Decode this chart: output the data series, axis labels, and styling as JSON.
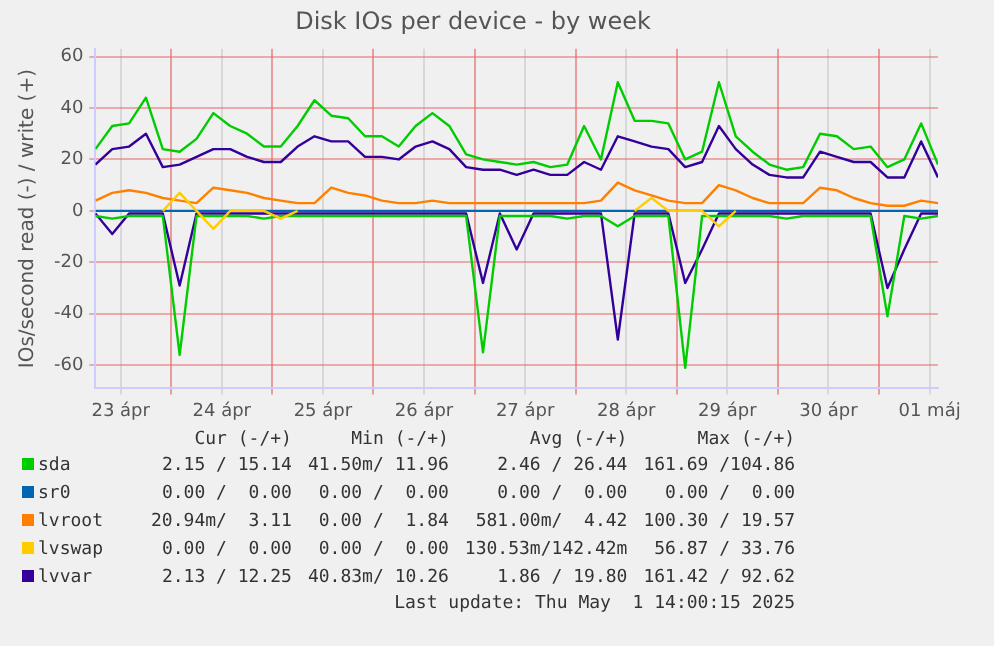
{
  "chart_data": {
    "type": "line",
    "title": "Disk IOs per device - by week",
    "ylabel": "IOs/second read (-) / write (+)",
    "x": [
      "2025-04-23T06:00",
      "2025-04-23T10:00",
      "2025-04-23T14:00",
      "2025-04-23T18:00",
      "2025-04-23T22:00",
      "2025-04-24T02:00",
      "2025-04-24T06:00",
      "2025-04-24T10:00",
      "2025-04-24T14:00",
      "2025-04-24T18:00",
      "2025-04-24T22:00",
      "2025-04-25T02:00",
      "2025-04-25T06:00",
      "2025-04-25T10:00",
      "2025-04-25T14:00",
      "2025-04-25T18:00",
      "2025-04-25T22:00",
      "2025-04-26T02:00",
      "2025-04-26T06:00",
      "2025-04-26T10:00",
      "2025-04-26T14:00",
      "2025-04-26T18:00",
      "2025-04-26T22:00",
      "2025-04-27T02:00",
      "2025-04-27T06:00",
      "2025-04-27T10:00",
      "2025-04-27T14:00",
      "2025-04-27T18:00",
      "2025-04-27T22:00",
      "2025-04-28T02:00",
      "2025-04-28T06:00",
      "2025-04-28T10:00",
      "2025-04-28T14:00",
      "2025-04-28T18:00",
      "2025-04-28T22:00",
      "2025-04-29T02:00",
      "2025-04-29T06:00",
      "2025-04-29T10:00",
      "2025-04-29T14:00",
      "2025-04-29T18:00",
      "2025-04-29T22:00",
      "2025-04-30T02:00",
      "2025-04-30T06:00",
      "2025-04-30T10:00",
      "2025-04-30T14:00",
      "2025-04-30T18:00",
      "2025-04-30T22:00",
      "2025-05-01T02:00",
      "2025-05-01T06:00",
      "2025-05-01T10:00",
      "2025-05-01T14:00"
    ],
    "series": [
      {
        "name": "sda",
        "color": "#00cc00",
        "values": [
          24,
          33,
          34,
          44,
          24,
          23,
          28,
          38,
          33,
          30,
          25,
          25,
          33,
          43,
          37,
          36,
          29,
          29,
          25,
          33,
          38,
          33,
          22,
          20,
          19,
          18,
          19,
          17,
          18,
          33,
          20,
          50,
          35,
          35,
          34,
          20,
          23,
          50,
          29,
          23,
          18,
          16,
          17,
          30,
          29,
          24,
          25,
          17,
          20,
          34,
          18
        ]
      },
      {
        "color": "#00cc00",
        "values": [
          -2,
          -3,
          -2,
          -2,
          -2,
          -56,
          -2,
          -2,
          -2,
          -2,
          -3,
          -2,
          -2,
          -2,
          -2,
          -2,
          -2,
          -2,
          -2,
          -2,
          -2,
          -2,
          -2,
          -55,
          -2,
          -2,
          -2,
          -2,
          -3,
          -2,
          -2,
          -6,
          -2,
          -2,
          -2,
          -61,
          -2,
          -2,
          -2,
          -2,
          -2,
          -3,
          -2,
          -2,
          -2,
          -2,
          -2,
          -41,
          -2,
          -3,
          -2
        ]
      },
      {
        "name": "sr0",
        "color": "#0066b3",
        "values": [
          0,
          0,
          0,
          0,
          0,
          0,
          0,
          0,
          0,
          0,
          0,
          0,
          0,
          0,
          0,
          0,
          0,
          0,
          0,
          0,
          0,
          0,
          0,
          0,
          0,
          0,
          0,
          0,
          0,
          0,
          0,
          0,
          0,
          0,
          0,
          0,
          0,
          0,
          0,
          0,
          0,
          0,
          0,
          0,
          0,
          0,
          0,
          0,
          0,
          0,
          0
        ]
      },
      {
        "name": "lvroot",
        "color": "#ff8000",
        "values": [
          4,
          7,
          8,
          7,
          5,
          4,
          3,
          9,
          8,
          7,
          5,
          4,
          3,
          3,
          9,
          7,
          6,
          4,
          3,
          3,
          4,
          3,
          3,
          3,
          3,
          3,
          3,
          3,
          3,
          3,
          4,
          11,
          8,
          6,
          4,
          3,
          3,
          10,
          8,
          5,
          3,
          3,
          3,
          9,
          8,
          5,
          3,
          2,
          2,
          4,
          3
        ]
      },
      {
        "name": "lvswap",
        "color": "#ffcc00",
        "values": [
          null,
          null,
          null,
          null,
          0,
          7,
          0,
          -7,
          0,
          0,
          0,
          -3,
          0,
          null,
          null,
          null,
          null,
          null,
          null,
          null,
          null,
          null,
          null,
          null,
          null,
          null,
          null,
          null,
          null,
          null,
          null,
          null,
          0,
          5,
          0,
          0,
          0,
          -6,
          0,
          null,
          null,
          null,
          null,
          null,
          null,
          null,
          null,
          null,
          null,
          null,
          null
        ]
      },
      {
        "name": "lvvar",
        "color": "#330099",
        "values": [
          18,
          24,
          25,
          30,
          17,
          18,
          21,
          24,
          24,
          21,
          19,
          19,
          25,
          29,
          27,
          27,
          21,
          21,
          20,
          25,
          27,
          24,
          17,
          16,
          16,
          14,
          16,
          14,
          14,
          19,
          16,
          29,
          27,
          25,
          24,
          17,
          19,
          33,
          24,
          18,
          14,
          13,
          13,
          23,
          21,
          19,
          19,
          13,
          13,
          27,
          13
        ]
      },
      {
        "color": "#330099",
        "values": [
          -1,
          -9,
          -1,
          -1,
          -1,
          -29,
          -1,
          -1,
          -1,
          -1,
          -1,
          -1,
          -1,
          -1,
          -1,
          -1,
          -1,
          -1,
          -1,
          -1,
          -1,
          -1,
          -1,
          -28,
          -1,
          -15,
          -1,
          -1,
          -1,
          -1,
          -1,
          -50,
          -1,
          -1,
          -1,
          -28,
          -15,
          -1,
          -1,
          -1,
          -1,
          -1,
          -1,
          -1,
          -1,
          -1,
          -1,
          -30,
          -15,
          -1,
          -1
        ]
      }
    ],
    "xlim": [
      "2025-04-23T06:00",
      "2025-05-01T14:00"
    ],
    "xticks": [
      {
        "value": "2025-04-23T12:00",
        "label": "23 ápr"
      },
      {
        "value": "2025-04-24T00:00",
        "label": null
      },
      {
        "value": "2025-04-24T12:00",
        "label": "24 ápr"
      },
      {
        "value": "2025-04-25T00:00",
        "label": null
      },
      {
        "value": "2025-04-25T12:00",
        "label": "25 ápr"
      },
      {
        "value": "2025-04-26T00:00",
        "label": null
      },
      {
        "value": "2025-04-26T12:00",
        "label": "26 ápr"
      },
      {
        "value": "2025-04-27T00:00",
        "label": null
      },
      {
        "value": "2025-04-27T12:00",
        "label": "27 ápr"
      },
      {
        "value": "2025-04-28T00:00",
        "label": null
      },
      {
        "value": "2025-04-28T12:00",
        "label": "28 ápr"
      },
      {
        "value": "2025-04-29T00:00",
        "label": null
      },
      {
        "value": "2025-04-29T12:00",
        "label": "29 ápr"
      },
      {
        "value": "2025-04-30T00:00",
        "label": null
      },
      {
        "value": "2025-04-30T12:00",
        "label": "30 ápr"
      },
      {
        "value": "2025-05-01T00:00",
        "label": null
      },
      {
        "value": "2025-05-01T12:00",
        "label": "01 máj"
      }
    ],
    "ylim": [
      -69,
      63
    ],
    "yticks": [
      -60,
      -40,
      -20,
      0,
      20,
      40,
      60
    ],
    "grid": true,
    "legend": "bottom",
    "marker": "none",
    "line_style": "solid",
    "annotations": [
      "Cur (-/+)",
      "Min (-/+)",
      "Avg (-/+)",
      "Max (-/+)",
      "2.15 / 15.14",
      "41.50m/ 11.96",
      "2.46 / 26.44",
      "161.69 /104.86",
      "0.00 /  0.00",
      "0.00 /  0.00",
      "0.00 /  0.00",
      "0.00 /  0.00",
      "20.94m/  3.11",
      "0.00 /  1.84",
      "581.00m/  4.42",
      "100.30 / 19.57",
      "0.00 /  0.00",
      "0.00 /  0.00",
      "130.53m/142.42m",
      "56.87 / 33.76",
      "2.13 / 12.25",
      "40.83m/ 10.26",
      "1.86 / 19.80",
      "161.42 / 92.62",
      "Last update: Thu May  1 14:00:15 2025"
    ]
  }
}
